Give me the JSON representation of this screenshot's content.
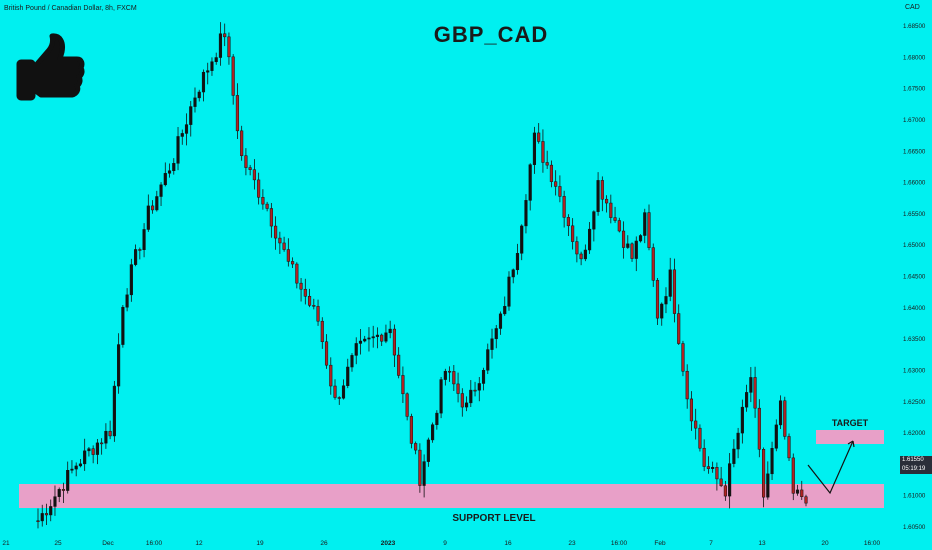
{
  "header": {
    "symbol_line": "British Pound / Canadian Dollar, 8h, FXCM",
    "currency": "CAD"
  },
  "title": "GBP_CAD",
  "colors": {
    "background": "#00f0f0",
    "bull_candle": "#111111",
    "bear_candle": "#b22222",
    "zone_fill": "#e8a0c8",
    "text": "#1a1a1a"
  },
  "icons": {
    "thumbs_up": "thumbs-up-icon"
  },
  "annotations": {
    "support_label": "SUPPORT LEVEL",
    "target_label": "TARGET"
  },
  "price_badges": {
    "current_price": "1.61550",
    "countdown": "05:19:19"
  },
  "chart_data": {
    "type": "candlestick",
    "title": "GBP_CAD",
    "y_axis": {
      "range": [
        1.6035,
        1.688
      ],
      "unit": "CAD",
      "ticks": [
        "1.68500",
        "1.68000",
        "1.67500",
        "1.67000",
        "1.66500",
        "1.66000",
        "1.65500",
        "1.65000",
        "1.64500",
        "1.64000",
        "1.63500",
        "1.63000",
        "1.62500",
        "1.62000",
        "1.61500",
        "1.61000",
        "1.60500"
      ]
    },
    "x_axis": {
      "ticks": [
        "21",
        "25",
        "Dec",
        "16:00",
        "12",
        "19",
        "26",
        "2023",
        "9",
        "16",
        "23",
        "16:00",
        "Feb",
        "7",
        "13",
        "20",
        "16:00"
      ]
    },
    "support_zone": {
      "low": 1.608,
      "high": 1.612
    },
    "target_zone": {
      "low": 1.619,
      "high": 1.621
    },
    "projection_path": [
      [
        1.6155,
        1.612
      ],
      [
        1.61,
        1.61
      ],
      [
        1.616,
        1.6195
      ]
    ],
    "segments": [
      {
        "start": 1.605,
        "end": 1.615,
        "count": 10
      },
      {
        "start": 1.615,
        "end": 1.6205,
        "count": 8
      },
      {
        "start": 1.6205,
        "end": 1.641,
        "count": 3
      },
      {
        "start": 1.641,
        "end": 1.655,
        "count": 6
      },
      {
        "start": 1.655,
        "end": 1.664,
        "count": 6
      },
      {
        "start": 1.664,
        "end": 1.674,
        "count": 5
      },
      {
        "start": 1.674,
        "end": 1.684,
        "count": 7
      },
      {
        "start": 1.684,
        "end": 1.664,
        "count": 4
      },
      {
        "start": 1.664,
        "end": 1.656,
        "count": 6
      },
      {
        "start": 1.656,
        "end": 1.647,
        "count": 5
      },
      {
        "start": 1.647,
        "end": 1.638,
        "count": 7
      },
      {
        "start": 1.638,
        "end": 1.625,
        "count": 4
      },
      {
        "start": 1.625,
        "end": 1.633,
        "count": 5
      },
      {
        "start": 1.633,
        "end": 1.637,
        "count": 8
      },
      {
        "start": 1.637,
        "end": 1.622,
        "count": 4
      },
      {
        "start": 1.622,
        "end": 1.613,
        "count": 3
      },
      {
        "start": 1.613,
        "end": 1.63,
        "count": 6
      },
      {
        "start": 1.63,
        "end": 1.624,
        "count": 5
      },
      {
        "start": 1.624,
        "end": 1.638,
        "count": 8
      },
      {
        "start": 1.638,
        "end": 1.65,
        "count": 4
      },
      {
        "start": 1.65,
        "end": 1.667,
        "count": 4
      },
      {
        "start": 1.667,
        "end": 1.66,
        "count": 5
      },
      {
        "start": 1.66,
        "end": 1.647,
        "count": 6
      },
      {
        "start": 1.647,
        "end": 1.66,
        "count": 4
      },
      {
        "start": 1.66,
        "end": 1.648,
        "count": 8
      },
      {
        "start": 1.648,
        "end": 1.654,
        "count": 3
      },
      {
        "start": 1.654,
        "end": 1.639,
        "count": 3
      },
      {
        "start": 1.639,
        "end": 1.645,
        "count": 3
      },
      {
        "start": 1.645,
        "end": 1.626,
        "count": 4
      },
      {
        "start": 1.626,
        "end": 1.615,
        "count": 4
      },
      {
        "start": 1.615,
        "end": 1.611,
        "count": 5
      },
      {
        "start": 1.611,
        "end": 1.629,
        "count": 6
      },
      {
        "start": 1.629,
        "end": 1.61,
        "count": 3
      },
      {
        "start": 1.61,
        "end": 1.624,
        "count": 4
      },
      {
        "start": 1.624,
        "end": 1.61,
        "count": 3
      },
      {
        "start": 1.61,
        "end": 1.61,
        "count": 3
      }
    ]
  }
}
